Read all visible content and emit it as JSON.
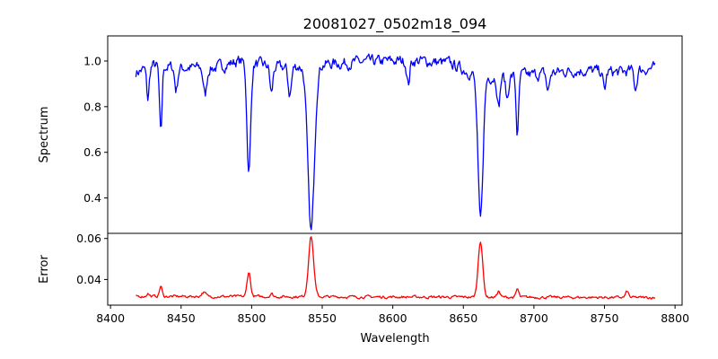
{
  "chart_data": {
    "type": "line",
    "title": "20081027_0502m18_094",
    "xlabel": "Wavelength",
    "xlim": [
      8398,
      8805
    ],
    "xticks": [
      8400,
      8450,
      8500,
      8550,
      8600,
      8650,
      8700,
      8750,
      8800
    ],
    "panels": [
      {
        "name": "spectrum",
        "ylabel": "Spectrum",
        "ylim": [
          0.245,
          1.11
        ],
        "yticks": [
          0.4,
          0.6,
          0.8,
          1.0
        ],
        "yticklabels": [
          "0.4",
          "0.6",
          "0.8",
          "1.0"
        ],
        "series": [
          {
            "color": "#0000ff",
            "line": "piecewise",
            "x_start": 8418,
            "x_end": 8786,
            "noise": 0.045,
            "baseline": [
              [
                8418,
                0.95
              ],
              [
                8430,
                0.98
              ],
              [
                8450,
                0.97
              ],
              [
                8475,
                0.97
              ],
              [
                8490,
                1.0
              ],
              [
                8520,
                0.97
              ],
              [
                8560,
                0.99
              ],
              [
                8600,
                1.0
              ],
              [
                8620,
                1.0
              ],
              [
                8640,
                0.99
              ],
              [
                8655,
                0.95
              ],
              [
                8670,
                0.93
              ],
              [
                8700,
                0.94
              ],
              [
                8730,
                0.96
              ],
              [
                8760,
                0.95
              ],
              [
                8786,
                0.97
              ]
            ],
            "features": [
              {
                "center": 8426.5,
                "depth": 0.14,
                "width": 0.9
              },
              {
                "center": 8435.6,
                "depth": 0.3,
                "width": 0.9
              },
              {
                "center": 8446.5,
                "depth": 0.1,
                "width": 1.0
              },
              {
                "center": 8467.0,
                "depth": 0.12,
                "width": 1.2
              },
              {
                "center": 8498.0,
                "depth": 0.48,
                "width": 1.3
              },
              {
                "center": 8514.0,
                "depth": 0.12,
                "width": 1.0
              },
              {
                "center": 8527.0,
                "depth": 0.12,
                "width": 1.2
              },
              {
                "center": 8542.1,
                "depth": 0.73,
                "width": 2.3
              },
              {
                "center": 8611.0,
                "depth": 0.1,
                "width": 1.0
              },
              {
                "center": 8662.1,
                "depth": 0.64,
                "width": 1.8
              },
              {
                "center": 8675.0,
                "depth": 0.13,
                "width": 1.0
              },
              {
                "center": 8681.0,
                "depth": 0.1,
                "width": 1.0
              },
              {
                "center": 8688.3,
                "depth": 0.26,
                "width": 0.9
              },
              {
                "center": 8710.0,
                "depth": 0.08,
                "width": 1.0
              },
              {
                "center": 8750.0,
                "depth": 0.08,
                "width": 1.0
              },
              {
                "center": 8772.0,
                "depth": 0.08,
                "width": 1.0
              }
            ]
          }
        ]
      },
      {
        "name": "error",
        "ylabel": "Error",
        "ylim": [
          0.0275,
          0.0625
        ],
        "yticks": [
          0.04,
          0.06
        ],
        "yticklabels": [
          "0.04",
          "0.06"
        ],
        "series": [
          {
            "color": "#ff0000",
            "line": "piecewise",
            "x_start": 8418,
            "x_end": 8786,
            "baseline": [
              [
                8418,
                0.0318
              ],
              [
                8600,
                0.0315
              ],
              [
                8786,
                0.0312
              ]
            ],
            "noise": 0.0012,
            "features": [
              {
                "center": 8426.5,
                "depth": 0.0015,
                "width": 0.9
              },
              {
                "center": 8435.6,
                "depth": 0.005,
                "width": 0.9
              },
              {
                "center": 8466.0,
                "depth": 0.002,
                "width": 1.5
              },
              {
                "center": 8498.0,
                "depth": 0.012,
                "width": 1.2
              },
              {
                "center": 8514.0,
                "depth": 0.0015,
                "width": 1.0
              },
              {
                "center": 8542.1,
                "depth": 0.0295,
                "width": 1.8
              },
              {
                "center": 8662.1,
                "depth": 0.0275,
                "width": 1.6
              },
              {
                "center": 8675.0,
                "depth": 0.003,
                "width": 1.0
              },
              {
                "center": 8688.3,
                "depth": 0.004,
                "width": 0.9
              },
              {
                "center": 8766.0,
                "depth": 0.003,
                "width": 1.0
              }
            ]
          }
        ]
      }
    ]
  }
}
